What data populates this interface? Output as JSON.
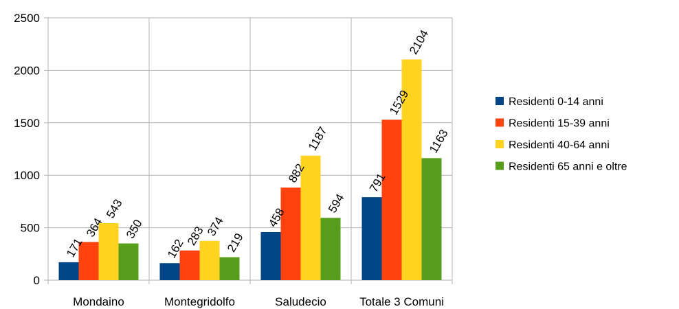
{
  "chart_data": {
    "type": "bar",
    "title": "",
    "xlabel": "",
    "ylabel": "",
    "categories": [
      "Mondaino",
      "Montegridolfo",
      "Saludecio",
      "Totale 3 Comuni"
    ],
    "series": [
      {
        "name": "Residenti 0-14 anni",
        "color": "#004586",
        "values": [
          171,
          162,
          458,
          791
        ]
      },
      {
        "name": "Residenti 15-39 anni",
        "color": "#ff420e",
        "values": [
          364,
          283,
          882,
          1529
        ]
      },
      {
        "name": "Residenti 40-64 anni",
        "color": "#ffd320",
        "values": [
          543,
          374,
          1187,
          2104
        ]
      },
      {
        "name": "Residenti 65 anni e oltre",
        "color": "#579d1c",
        "values": [
          350,
          219,
          594,
          1163
        ]
      }
    ],
    "ylim": [
      0,
      2500
    ],
    "yticks": [
      0,
      500,
      1000,
      1500,
      2000,
      2500
    ],
    "grid": true,
    "legend_position": "right"
  }
}
